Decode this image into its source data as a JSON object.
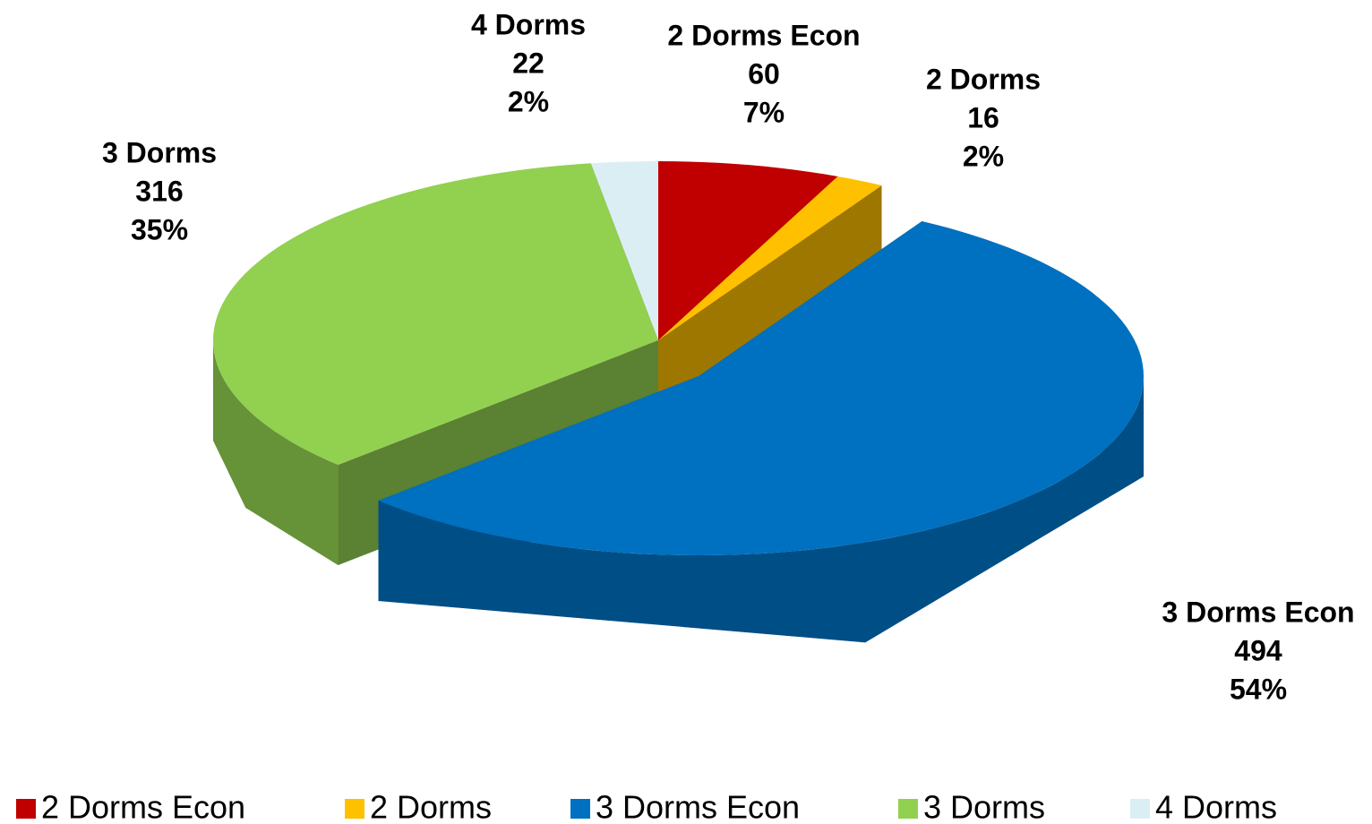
{
  "chart_data": {
    "type": "pie",
    "categories": [
      "2 Dorms Econ",
      "2 Dorms",
      "3 Dorms Econ",
      "3 Dorms",
      "4 Dorms"
    ],
    "values": [
      60,
      16,
      494,
      316,
      22
    ],
    "percent_labels": [
      "7%",
      "2%",
      "54%",
      "35%",
      "2%"
    ],
    "colors": [
      "#c00000",
      "#ffc000",
      "#0070c0",
      "#92d050",
      "#dbeef4"
    ],
    "legend": "bottom"
  }
}
